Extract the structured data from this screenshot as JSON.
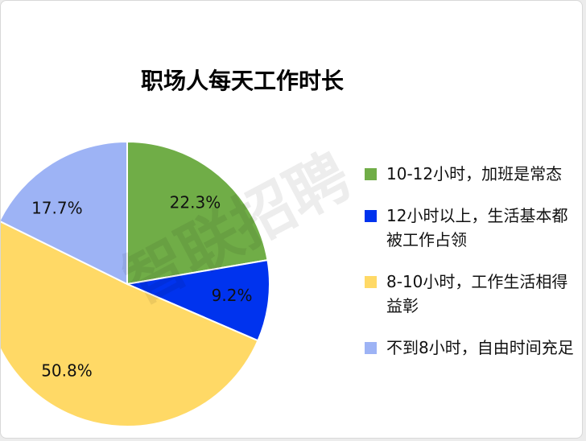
{
  "chart_data": {
    "type": "pie",
    "title": "职场人每天工作时长",
    "start_angle": "12 o'clock, clockwise",
    "legend_position": "right",
    "slices": [
      {
        "label": "10-12小时，加班是常态",
        "value": 22.3,
        "data_label": "22.3%",
        "color": "#70ad47"
      },
      {
        "label": "12小时以上，生活基本都被工作占领",
        "value": 9.2,
        "data_label": "9.2%",
        "color": "#0033ee"
      },
      {
        "label": "8-10小时，工作生活相得益彰",
        "value": 50.8,
        "data_label": "50.8%",
        "color": "#ffd966"
      },
      {
        "label": "不到8小时，自由时间充足",
        "value": 17.7,
        "data_label": "17.7%",
        "color": "#9db3f5"
      }
    ]
  },
  "watermark": "智联招聘"
}
